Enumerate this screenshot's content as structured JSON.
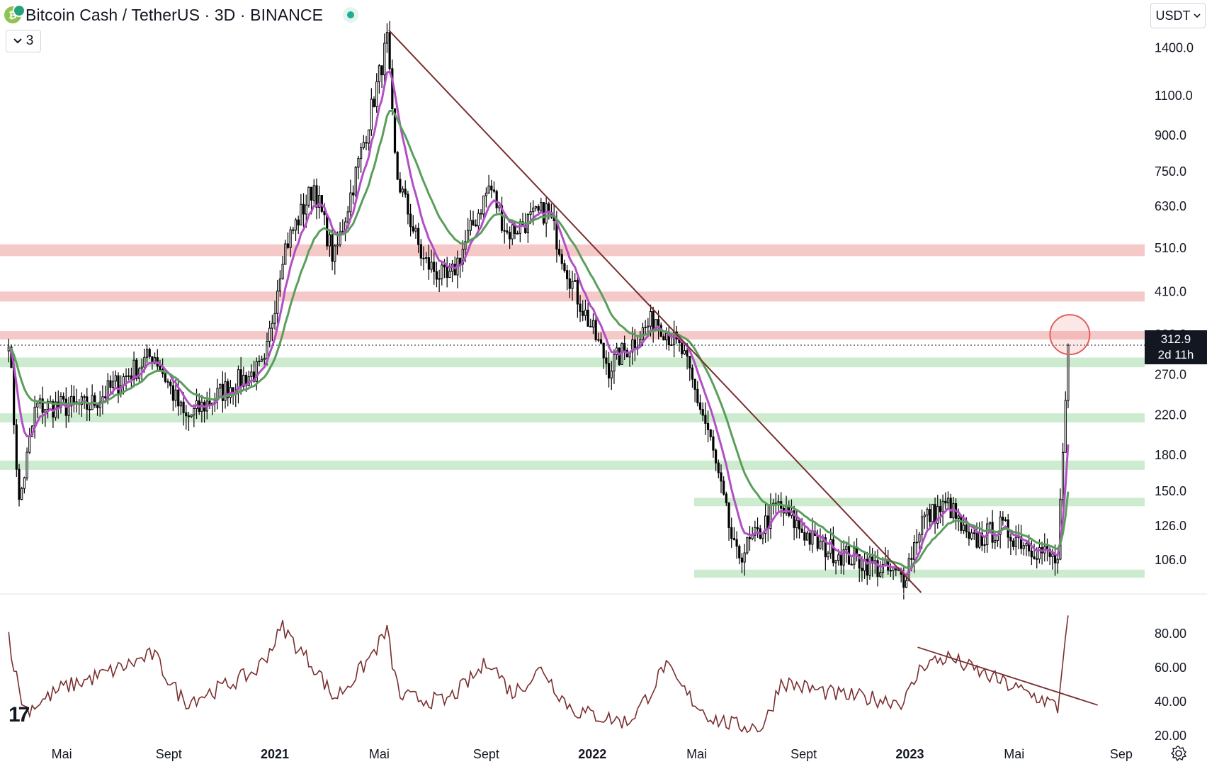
{
  "header": {
    "title": "Bitcoin Cash / TetherUS · 3D · BINANCE",
    "coin_icon": "bitcoin-cash-icon",
    "market_status": "market-open-dot",
    "indicator_count": "3"
  },
  "currency_button": "USDT",
  "current_price": {
    "value": "312.9",
    "countdown": "2d 11h"
  },
  "x_axis_labels": [
    "Mai",
    "Sept",
    "2021",
    "Mai",
    "Sept",
    "2022",
    "Mai",
    "Sept",
    "2023",
    "Mai",
    "Sep"
  ],
  "price_axis_labels": [
    "1400.0",
    "1100.0",
    "900.0",
    "750.0",
    "630.0",
    "510.0",
    "410.0",
    "330.0",
    "270.0",
    "220.0",
    "180.0",
    "150.0",
    "126.0",
    "106.0"
  ],
  "rsi_axis_labels": [
    "80.00",
    "60.00",
    "40.00",
    "20.00"
  ],
  "colors": {
    "candle": "#000000",
    "ema_fast": "#b24fc4",
    "ema_slow": "#5a9e5c",
    "resistance_zone": "#f6c9c9",
    "support_zone": "#cdeccf",
    "trendline": "#7a2e2e",
    "rsi_line": "#7a2e2e",
    "highlight_circle": "#e06060"
  },
  "chart_data": [
    {
      "type": "candlestick",
      "scale": "log",
      "timeframe": "3D",
      "ylim": [
        90,
        1600
      ],
      "x_range": [
        "2020-03",
        "2023-09"
      ],
      "current_price": 312.9,
      "close_anchors": [
        {
          "date": "2020-03-01",
          "price": 330
        },
        {
          "date": "2020-03-13",
          "price": 140
        },
        {
          "date": "2020-04-01",
          "price": 230
        },
        {
          "date": "2020-06-01",
          "price": 230
        },
        {
          "date": "2020-08-15",
          "price": 300
        },
        {
          "date": "2020-09-20",
          "price": 215
        },
        {
          "date": "2020-11-10",
          "price": 255
        },
        {
          "date": "2020-12-20",
          "price": 280
        },
        {
          "date": "2021-01-10",
          "price": 500
        },
        {
          "date": "2021-02-15",
          "price": 700
        },
        {
          "date": "2021-03-10",
          "price": 480
        },
        {
          "date": "2021-04-15",
          "price": 900
        },
        {
          "date": "2021-05-10",
          "price": 1450
        },
        {
          "date": "2021-05-20",
          "price": 750
        },
        {
          "date": "2021-06-20",
          "price": 480
        },
        {
          "date": "2021-07-20",
          "price": 430
        },
        {
          "date": "2021-09-05",
          "price": 700
        },
        {
          "date": "2021-09-25",
          "price": 550
        },
        {
          "date": "2021-11-10",
          "price": 620
        },
        {
          "date": "2021-12-10",
          "price": 420
        },
        {
          "date": "2022-01-20",
          "price": 280
        },
        {
          "date": "2022-03-15",
          "price": 360
        },
        {
          "date": "2022-04-15",
          "price": 300
        },
        {
          "date": "2022-05-15",
          "price": 200
        },
        {
          "date": "2022-06-15",
          "price": 107
        },
        {
          "date": "2022-07-10",
          "price": 120
        },
        {
          "date": "2022-08-01",
          "price": 140
        },
        {
          "date": "2022-09-15",
          "price": 115
        },
        {
          "date": "2022-11-09",
          "price": 105
        },
        {
          "date": "2022-12-25",
          "price": 97
        },
        {
          "date": "2023-01-15",
          "price": 130
        },
        {
          "date": "2023-02-15",
          "price": 140
        },
        {
          "date": "2023-03-10",
          "price": 115
        },
        {
          "date": "2023-04-15",
          "price": 125
        },
        {
          "date": "2023-06-10",
          "price": 108
        },
        {
          "date": "2023-06-20",
          "price": 105
        },
        {
          "date": "2023-06-28",
          "price": 210
        },
        {
          "date": "2023-07-04",
          "price": 313
        }
      ],
      "moving_averages": [
        {
          "name": "",
          "color": "#b24fc4",
          "period": 8
        },
        {
          "name": "",
          "color": "#5a9e5c",
          "period": 20
        }
      ],
      "resistance_zones": [
        {
          "low": 490,
          "high": 520
        },
        {
          "low": 390,
          "high": 410
        },
        {
          "low": 322,
          "high": 336
        }
      ],
      "support_zones": [
        {
          "low": 280,
          "high": 294
        },
        {
          "low": 212,
          "high": 222
        },
        {
          "low": 167,
          "high": 175
        },
        {
          "low": 139,
          "high": 145
        },
        {
          "low": 97,
          "high": 101
        }
      ],
      "trendline": [
        {
          "date": "2021-05-12",
          "price": 1530
        },
        {
          "date": "2023-01-14",
          "price": 90
        }
      ],
      "highlight": {
        "date": "2023-07-04",
        "price": 330
      }
    },
    {
      "type": "line",
      "ylim": [
        15,
        95
      ],
      "series": [
        {
          "values_anchor": [
            {
              "date": "2020-03-01",
              "value": 80
            },
            {
              "date": "2020-03-20",
              "value": 35
            },
            {
              "date": "2020-05-01",
              "value": 48
            },
            {
              "date": "2020-08-15",
              "value": 68
            },
            {
              "date": "2020-09-20",
              "value": 40
            },
            {
              "date": "2020-12-10",
              "value": 58
            },
            {
              "date": "2021-01-10",
              "value": 84
            },
            {
              "date": "2021-02-20",
              "value": 58
            },
            {
              "date": "2021-03-10",
              "value": 42
            },
            {
              "date": "2021-05-10",
              "value": 82
            },
            {
              "date": "2021-05-25",
              "value": 43
            },
            {
              "date": "2021-07-15",
              "value": 40
            },
            {
              "date": "2021-09-05",
              "value": 65
            },
            {
              "date": "2021-10-01",
              "value": 45
            },
            {
              "date": "2021-11-05",
              "value": 60
            },
            {
              "date": "2021-12-10",
              "value": 35
            },
            {
              "date": "2022-02-10",
              "value": 28
            },
            {
              "date": "2022-03-25",
              "value": 62
            },
            {
              "date": "2022-05-20",
              "value": 30
            },
            {
              "date": "2022-06-15",
              "value": 26
            },
            {
              "date": "2022-07-15",
              "value": 25
            },
            {
              "date": "2022-08-05",
              "value": 52
            },
            {
              "date": "2022-10-10",
              "value": 44
            },
            {
              "date": "2022-12-25",
              "value": 40
            },
            {
              "date": "2023-01-15",
              "value": 62
            },
            {
              "date": "2023-02-15",
              "value": 66
            },
            {
              "date": "2023-04-15",
              "value": 52
            },
            {
              "date": "2023-06-10",
              "value": 40
            },
            {
              "date": "2023-06-20",
              "value": 36
            },
            {
              "date": "2023-06-28",
              "value": 80
            },
            {
              "date": "2023-07-04",
              "value": 91
            }
          ]
        }
      ],
      "trendline": [
        {
          "date": "2023-01-10",
          "value": 72
        },
        {
          "date": "2023-08-05",
          "value": 38
        }
      ]
    }
  ]
}
